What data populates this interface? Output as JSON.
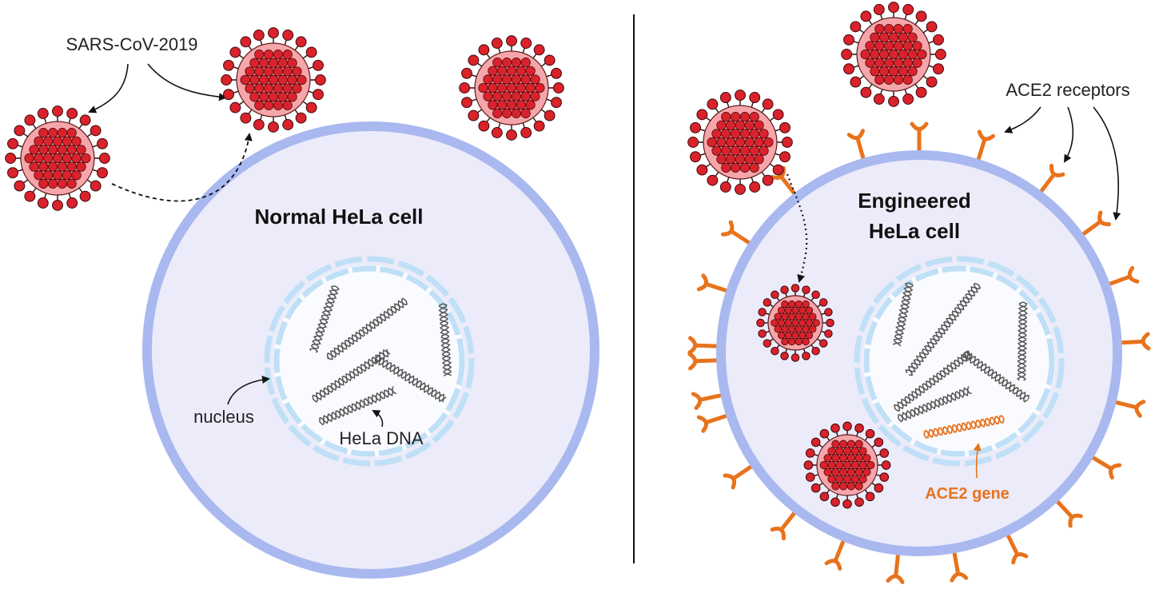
{
  "labels": {
    "virus": "SARS-CoV-2019",
    "normal_cell": "Normal HeLa cell",
    "engineered_cell_line1": "Engineered",
    "engineered_cell_line2": "HeLa cell",
    "nucleus": "nucleus",
    "hela_dna": "HeLa DNA",
    "ace2_receptors": "ACE2 receptors",
    "ace2_gene": "ACE2 gene"
  },
  "colors": {
    "cell_membrane": "#a9b8ef",
    "cell_fill": "#ecebfa",
    "nucleus_envelope": "#bfe0f6",
    "virus_core": "#d9222c",
    "virus_halo": "#f6a6aa",
    "ace2_orange": "#e8731c",
    "dna_gray": "#555555"
  }
}
